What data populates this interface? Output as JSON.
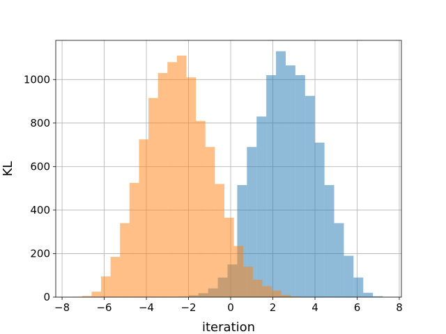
{
  "chart_data": {
    "type": "histogram",
    "title": "",
    "xlabel": "iteration",
    "ylabel": "KL",
    "xlim": [
      -8.3,
      8.1
    ],
    "ylim": [
      0,
      1180
    ],
    "x_ticks": [
      -8,
      -6,
      -4,
      -2,
      0,
      2,
      4,
      6,
      8
    ],
    "x_tick_labels": [
      "−8",
      "−6",
      "−4",
      "−2",
      "0",
      "2",
      "4",
      "6",
      "8"
    ],
    "y_ticks": [
      0,
      200,
      400,
      600,
      800,
      1000
    ],
    "y_tick_labels": [
      "0",
      "200",
      "400",
      "600",
      "800",
      "1000"
    ],
    "grid": true,
    "bar_opacity": 0.5,
    "series": [
      {
        "color": "#1f77b4",
        "bins": [
          {
            "x0": -2.45,
            "x1": -1.99,
            "count": 2
          },
          {
            "x0": -1.99,
            "x1": -1.53,
            "count": 8
          },
          {
            "x0": -1.53,
            "x1": -1.07,
            "count": 18
          },
          {
            "x0": -1.07,
            "x1": -0.61,
            "count": 40
          },
          {
            "x0": -0.61,
            "x1": -0.15,
            "count": 90
          },
          {
            "x0": -0.15,
            "x1": 0.31,
            "count": 150
          },
          {
            "x0": 0.31,
            "x1": 0.77,
            "count": 515
          },
          {
            "x0": 0.77,
            "x1": 1.23,
            "count": 690
          },
          {
            "x0": 1.23,
            "x1": 1.69,
            "count": 830
          },
          {
            "x0": 1.69,
            "x1": 2.15,
            "count": 1020
          },
          {
            "x0": 2.15,
            "x1": 2.61,
            "count": 1130
          },
          {
            "x0": 2.61,
            "x1": 3.07,
            "count": 1065
          },
          {
            "x0": 3.07,
            "x1": 3.53,
            "count": 1020
          },
          {
            "x0": 3.53,
            "x1": 3.99,
            "count": 925
          },
          {
            "x0": 3.99,
            "x1": 4.45,
            "count": 710
          },
          {
            "x0": 4.45,
            "x1": 4.91,
            "count": 515
          },
          {
            "x0": 4.91,
            "x1": 5.37,
            "count": 340
          },
          {
            "x0": 5.37,
            "x1": 5.83,
            "count": 190
          },
          {
            "x0": 5.83,
            "x1": 6.29,
            "count": 90
          },
          {
            "x0": 6.29,
            "x1": 6.75,
            "count": 20
          },
          {
            "x0": 6.75,
            "x1": 7.21,
            "count": 4
          }
        ]
      },
      {
        "color": "#ff7f0e",
        "bins": [
          {
            "x0": -7.5,
            "x1": -7.05,
            "count": 2
          },
          {
            "x0": -7.05,
            "x1": -6.6,
            "count": 5
          },
          {
            "x0": -6.6,
            "x1": -6.15,
            "count": 25
          },
          {
            "x0": -6.15,
            "x1": -5.7,
            "count": 95
          },
          {
            "x0": -5.7,
            "x1": -5.25,
            "count": 185
          },
          {
            "x0": -5.25,
            "x1": -4.8,
            "count": 340
          },
          {
            "x0": -4.8,
            "x1": -4.35,
            "count": 525
          },
          {
            "x0": -4.35,
            "x1": -3.9,
            "count": 725
          },
          {
            "x0": -3.9,
            "x1": -3.45,
            "count": 915
          },
          {
            "x0": -3.45,
            "x1": -3.0,
            "count": 1030
          },
          {
            "x0": -3.0,
            "x1": -2.55,
            "count": 1080
          },
          {
            "x0": -2.55,
            "x1": -2.1,
            "count": 1110
          },
          {
            "x0": -2.1,
            "x1": -1.65,
            "count": 1010
          },
          {
            "x0": -1.65,
            "x1": -1.2,
            "count": 810
          },
          {
            "x0": -1.2,
            "x1": -0.75,
            "count": 690
          },
          {
            "x0": -0.75,
            "x1": -0.3,
            "count": 520
          },
          {
            "x0": -0.3,
            "x1": 0.15,
            "count": 365
          },
          {
            "x0": 0.15,
            "x1": 0.6,
            "count": 235
          },
          {
            "x0": 0.6,
            "x1": 1.05,
            "count": 140
          },
          {
            "x0": 1.05,
            "x1": 1.5,
            "count": 80
          },
          {
            "x0": 1.5,
            "x1": 1.95,
            "count": 50
          },
          {
            "x0": 1.95,
            "x1": 2.4,
            "count": 30
          },
          {
            "x0": 2.4,
            "x1": 2.85,
            "count": 10
          },
          {
            "x0": 2.85,
            "x1": 3.3,
            "count": 3
          }
        ]
      }
    ]
  }
}
